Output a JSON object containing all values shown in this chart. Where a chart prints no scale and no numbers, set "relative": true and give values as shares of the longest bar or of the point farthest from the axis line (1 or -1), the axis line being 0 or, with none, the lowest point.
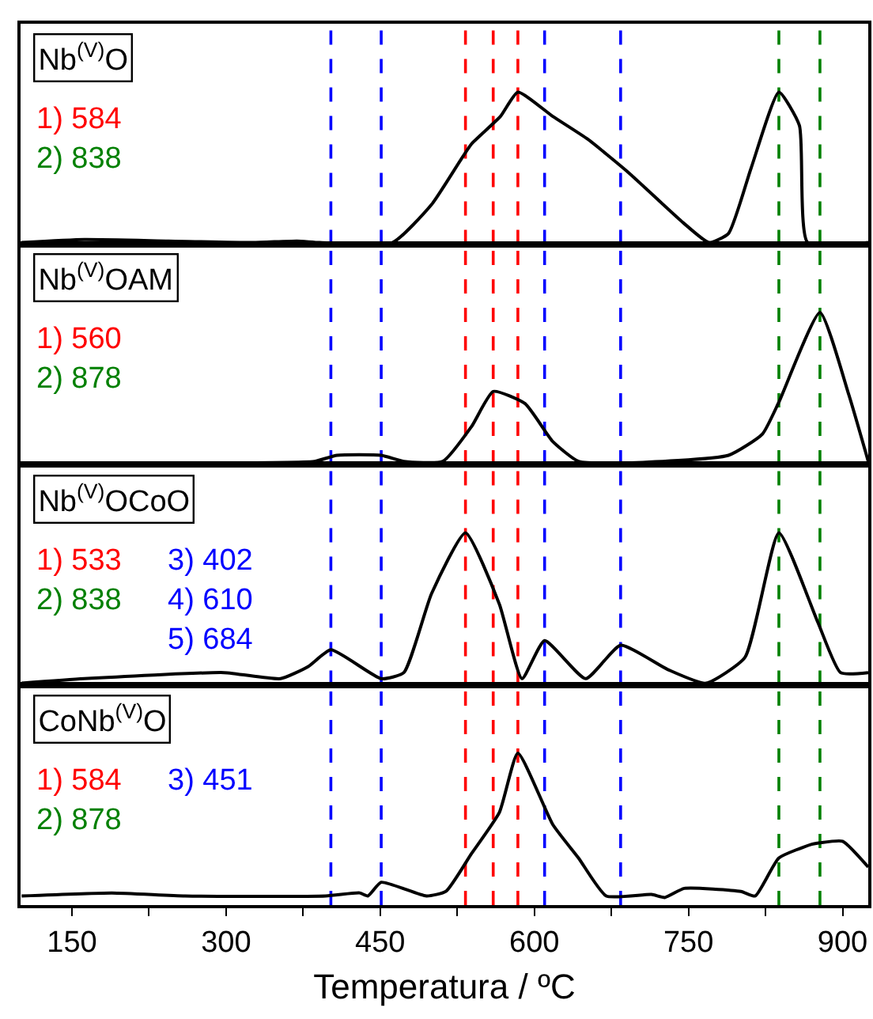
{
  "chart_data": [
    {
      "type": "line",
      "title": "Nb$^{(V)}$O",
      "relative": true,
      "xlim": [
        100,
        925
      ],
      "xticks": [
        150,
        300,
        450,
        600,
        750,
        900
      ],
      "tick_labels": false,
      "line_style": "solid",
      "marker": "none",
      "grid": false,
      "series": [
        {
          "color": "#000000",
          "x": [
            101,
            162,
            244,
            326,
            369,
            391,
            462,
            500,
            528,
            539,
            567,
            584,
            618,
            652,
            690,
            745,
            770,
            789,
            811,
            838,
            858,
            866,
            925
          ],
          "values": [
            0.01,
            0.03,
            0.02,
            0.01,
            0.02,
            0.01,
            0.01,
            0.26,
            0.55,
            0.66,
            0.84,
            1.0,
            0.84,
            0.69,
            0.48,
            0.14,
            0.01,
            0.07,
            0.5,
            1.0,
            0.78,
            0.01,
            0.01
          ]
        }
      ],
      "ref_lines": [
        {
          "axis": "x",
          "value": 584,
          "label": "1) 584",
          "color": "#ff0000",
          "line_style": "dashed"
        },
        {
          "axis": "x",
          "value": 838,
          "label": "2) 838",
          "color": "#008000",
          "line_style": "dashed"
        },
        {
          "axis": "x",
          "value": 402,
          "color": "#0000ff",
          "line_style": "dashed"
        },
        {
          "axis": "x",
          "value": 451,
          "color": "#0000ff",
          "line_style": "dashed"
        },
        {
          "axis": "x",
          "value": 533,
          "color": "#ff0000",
          "line_style": "dashed"
        },
        {
          "axis": "x",
          "value": 560,
          "color": "#ff0000",
          "line_style": "dashed"
        },
        {
          "axis": "x",
          "value": 610,
          "color": "#0000ff",
          "line_style": "dashed"
        },
        {
          "axis": "x",
          "value": 684,
          "color": "#0000ff",
          "line_style": "dashed"
        },
        {
          "axis": "x",
          "value": 878,
          "color": "#008000",
          "line_style": "dashed"
        }
      ]
    },
    {
      "type": "line",
      "title": "Nb$^{(V)}$OAM",
      "relative": true,
      "xlim": [
        100,
        925
      ],
      "xticks": [
        150,
        300,
        450,
        600,
        750,
        900
      ],
      "tick_labels": false,
      "line_style": "solid",
      "marker": "none",
      "grid": false,
      "series": [
        {
          "color": "#000000",
          "x": [
            101,
            244,
            386,
            408,
            451,
            473,
            511,
            539,
            560,
            591,
            618,
            643,
            690,
            789,
            822,
            838,
            878,
            906,
            925
          ],
          "values": [
            0.01,
            0.01,
            0.02,
            0.06,
            0.06,
            0.02,
            0.02,
            0.25,
            0.48,
            0.4,
            0.15,
            0.02,
            0.01,
            0.06,
            0.2,
            0.41,
            1.0,
            0.46,
            0.02
          ]
        }
      ],
      "ref_lines": [
        {
          "axis": "x",
          "value": 560,
          "label": "1) 560",
          "color": "#ff0000",
          "line_style": "dashed"
        },
        {
          "axis": "x",
          "value": 878,
          "label": "2) 878",
          "color": "#008000",
          "line_style": "dashed"
        },
        {
          "axis": "x",
          "value": 402,
          "color": "#0000ff",
          "line_style": "dashed"
        },
        {
          "axis": "x",
          "value": 451,
          "color": "#0000ff",
          "line_style": "dashed"
        },
        {
          "axis": "x",
          "value": 533,
          "color": "#ff0000",
          "line_style": "dashed"
        },
        {
          "axis": "x",
          "value": 584,
          "color": "#ff0000",
          "line_style": "dashed"
        },
        {
          "axis": "x",
          "value": 610,
          "color": "#0000ff",
          "line_style": "dashed"
        },
        {
          "axis": "x",
          "value": 684,
          "color": "#0000ff",
          "line_style": "dashed"
        },
        {
          "axis": "x",
          "value": 838,
          "color": "#008000",
          "line_style": "dashed"
        }
      ]
    },
    {
      "type": "line",
      "title": "Nb$^{(V)}$OCoO",
      "relative": true,
      "xlim": [
        100,
        925
      ],
      "xticks": [
        150,
        300,
        450,
        600,
        750,
        900
      ],
      "tick_labels": false,
      "line_style": "solid",
      "marker": "none",
      "grid": false,
      "series": [
        {
          "color": "#000000",
          "x": [
            101,
            162,
            298,
            353,
            380,
            402,
            451,
            473,
            500,
            533,
            566,
            588,
            610,
            650,
            684,
            730,
            767,
            805,
            838,
            876,
            898,
            925
          ],
          "values": [
            0.01,
            0.04,
            0.08,
            0.04,
            0.12,
            0.23,
            0.04,
            0.08,
            0.6,
            1.0,
            0.53,
            0.04,
            0.29,
            0.04,
            0.26,
            0.1,
            0.01,
            0.18,
            1.0,
            0.41,
            0.08,
            0.08
          ]
        }
      ],
      "ref_lines": [
        {
          "axis": "x",
          "value": 533,
          "label": "1) 533",
          "color": "#ff0000",
          "line_style": "dashed"
        },
        {
          "axis": "x",
          "value": 838,
          "label": "2) 838",
          "color": "#008000",
          "line_style": "dashed"
        },
        {
          "axis": "x",
          "value": 402,
          "label": "3) 402",
          "color": "#0000ff",
          "line_style": "dashed"
        },
        {
          "axis": "x",
          "value": 610,
          "label": "4) 610",
          "color": "#0000ff",
          "line_style": "dashed"
        },
        {
          "axis": "x",
          "value": 684,
          "label": "5) 684",
          "color": "#0000ff",
          "line_style": "dashed"
        },
        {
          "axis": "x",
          "value": 451,
          "color": "#0000ff",
          "line_style": "dashed"
        },
        {
          "axis": "x",
          "value": 560,
          "color": "#ff0000",
          "line_style": "dashed"
        },
        {
          "axis": "x",
          "value": 584,
          "color": "#ff0000",
          "line_style": "dashed"
        },
        {
          "axis": "x",
          "value": 878,
          "color": "#008000",
          "line_style": "dashed"
        }
      ]
    },
    {
      "type": "line",
      "title": "CoNb$^{(V)}$O",
      "xlabel": "Temperatura / ºC",
      "relative": true,
      "xlim": [
        100,
        925
      ],
      "xticks": [
        150,
        {
          "value": 225,
          "label": null
        },
        300,
        {
          "value": 375,
          "label": null
        },
        450,
        {
          "value": 525,
          "label": null
        },
        600,
        {
          "value": 675,
          "label": null
        },
        750,
        {
          "value": 825,
          "label": null
        },
        900
      ],
      "line_style": "solid",
      "marker": "none",
      "grid": false,
      "series": [
        {
          "color": "#000000",
          "x": [
            101,
            189,
            260,
            397,
            430,
            438,
            451,
            495,
            514,
            539,
            566,
            584,
            618,
            643,
            670,
            714,
            727,
            746,
            801,
            815,
            838,
            870,
            878,
            900,
            925
          ],
          "values": [
            0.06,
            0.08,
            0.06,
            0.06,
            0.08,
            0.06,
            0.15,
            0.06,
            0.09,
            0.34,
            0.61,
            1.0,
            0.53,
            0.31,
            0.06,
            0.07,
            0.05,
            0.11,
            0.09,
            0.06,
            0.31,
            0.4,
            0.41,
            0.42,
            0.25
          ]
        }
      ],
      "ref_lines": [
        {
          "axis": "x",
          "value": 584,
          "label": "1) 584",
          "color": "#ff0000",
          "line_style": "dashed"
        },
        {
          "axis": "x",
          "value": 878,
          "label": "2) 878",
          "color": "#008000",
          "line_style": "dashed"
        },
        {
          "axis": "x",
          "value": 451,
          "label": "3) 451",
          "color": "#0000ff",
          "line_style": "dashed"
        },
        {
          "axis": "x",
          "value": 402,
          "color": "#0000ff",
          "line_style": "dashed"
        },
        {
          "axis": "x",
          "value": 533,
          "color": "#ff0000",
          "line_style": "dashed"
        },
        {
          "axis": "x",
          "value": 560,
          "color": "#ff0000",
          "line_style": "dashed"
        },
        {
          "axis": "x",
          "value": 610,
          "color": "#0000ff",
          "line_style": "dashed"
        },
        {
          "axis": "x",
          "value": 684,
          "color": "#0000ff",
          "line_style": "dashed"
        },
        {
          "axis": "x",
          "value": 838,
          "color": "#008000",
          "line_style": "dashed"
        }
      ]
    }
  ]
}
